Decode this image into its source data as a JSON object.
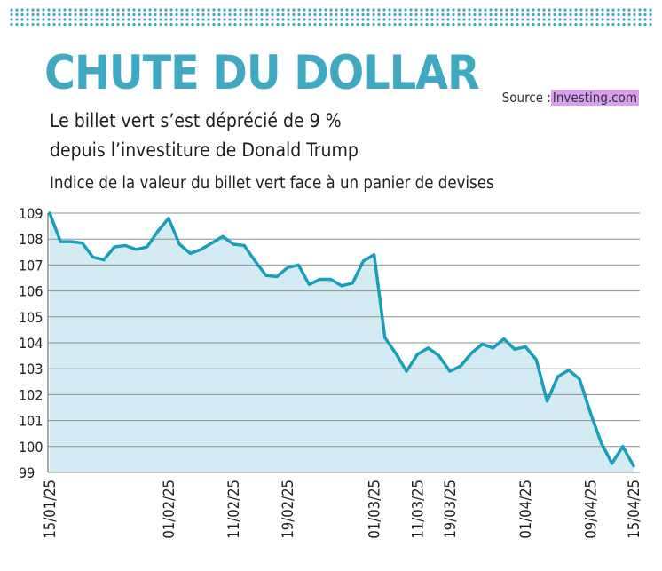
{
  "header": {
    "title": "CHUTE DU DOLLAR",
    "subtitle_line1": "Le billet vert s’est déprécié de 9 %",
    "subtitle_line2": "depuis l’investiture de Donald Trump",
    "description": "Indice de la valeur du billet vert face à un panier de devises",
    "source_label": "Source :",
    "source_name": "Investing.com"
  },
  "colors": {
    "title": "#3fa9c2",
    "line": "#1a9fba",
    "area": "#d4ebf3",
    "dots": "#3fa9c2",
    "grid": "#8e8e8e",
    "source_highlight": "#d9a0f2"
  },
  "chart_data": {
    "type": "area",
    "title": "CHUTE DU DOLLAR",
    "xlabel": "",
    "ylabel": "",
    "ylim": [
      99,
      109
    ],
    "yticks": [
      99,
      100,
      101,
      102,
      103,
      104,
      105,
      106,
      107,
      108,
      109
    ],
    "xticks": [
      "15/01/25",
      "01/02/25",
      "11/02/25",
      "19/02/25",
      "01/03/25",
      "11/03/25",
      "19/03/25",
      "01/04/25",
      "09/04/25",
      "15/04/25"
    ],
    "grid": true,
    "series": [
      {
        "values": [
          109.0,
          107.9,
          107.9,
          107.85,
          107.3,
          107.2,
          107.7,
          107.75,
          107.6,
          107.7,
          108.3,
          108.8,
          107.8,
          107.45,
          107.6,
          107.85,
          108.1,
          107.8,
          107.75,
          107.15,
          106.6,
          106.55,
          106.9,
          107.0,
          106.25,
          106.45,
          106.45,
          106.2,
          106.3,
          107.15,
          107.4,
          104.2,
          103.6,
          102.9,
          103.55,
          103.8,
          103.5,
          102.9,
          103.1,
          103.6,
          103.95,
          103.8,
          104.15,
          103.75,
          103.85,
          103.35,
          101.75,
          102.7,
          102.95,
          102.6,
          101.3,
          100.15,
          99.35,
          100.0,
          99.25
        ]
      }
    ]
  }
}
